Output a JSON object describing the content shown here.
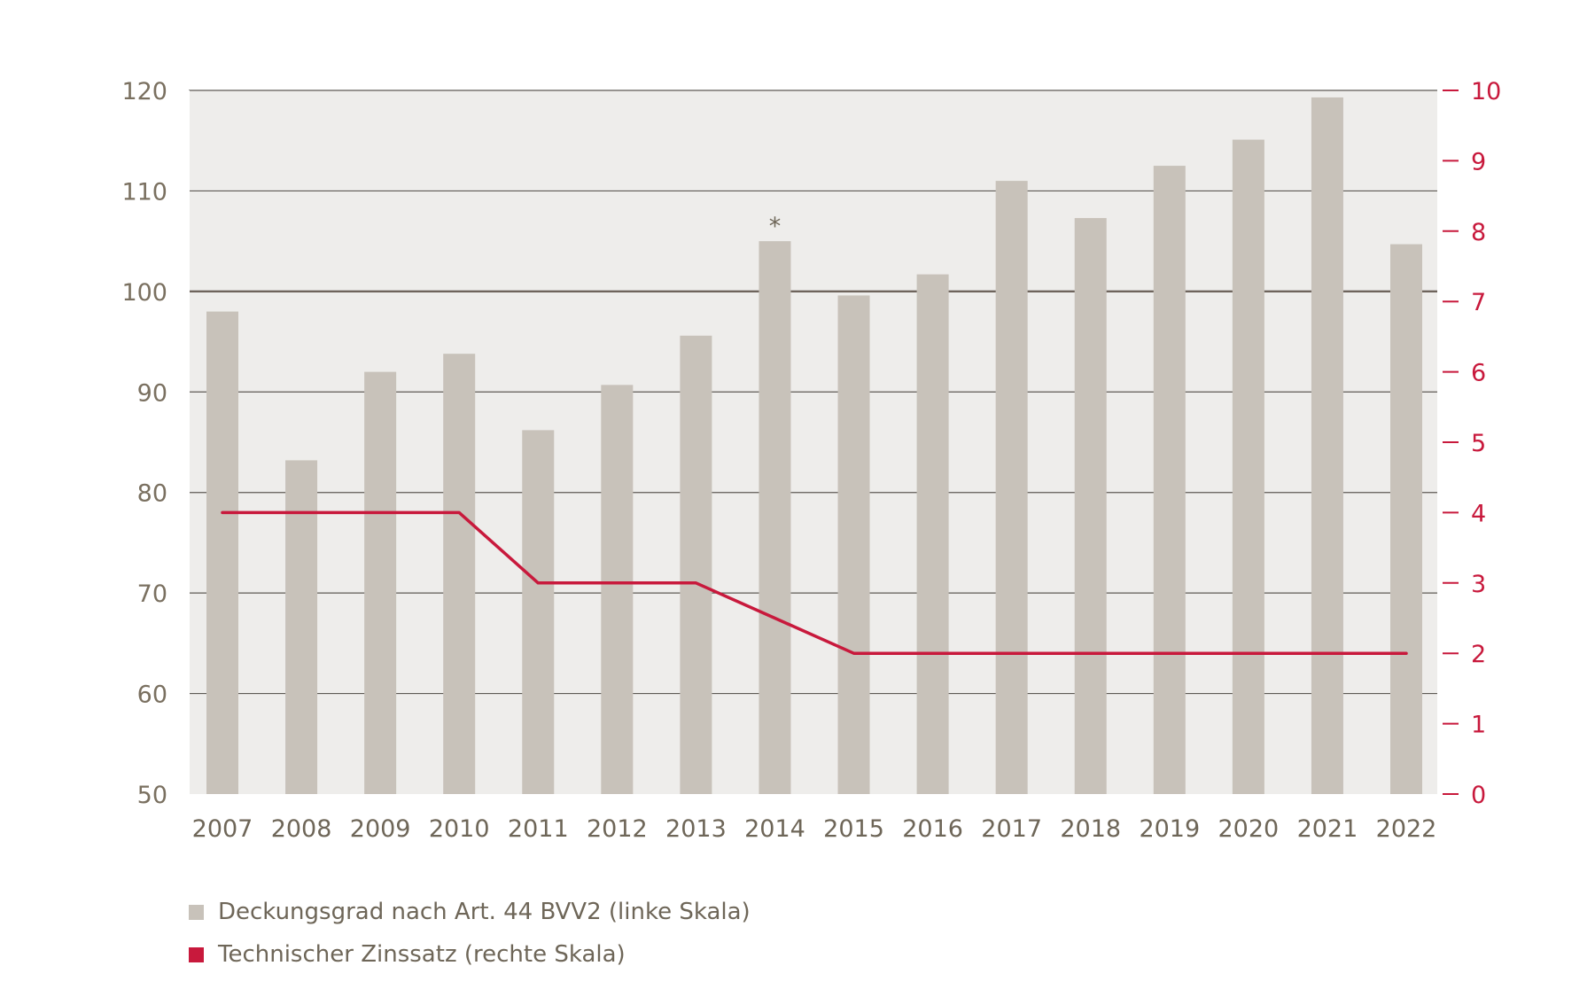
{
  "chart_data": {
    "type": "bar+line",
    "title": "",
    "categories": [
      "2007",
      "2008",
      "2009",
      "2010",
      "2011",
      "2012",
      "2013",
      "2014",
      "2015",
      "2016",
      "2017",
      "2018",
      "2019",
      "2020",
      "2021",
      "2022"
    ],
    "series": [
      {
        "name": "Deckungsgrad nach Art. 44 BVV2 (linke Skala)",
        "type": "bar",
        "axis": "left",
        "color": "#c8c2ba",
        "values": [
          98.0,
          83.2,
          92.0,
          93.8,
          86.2,
          90.7,
          95.6,
          105.0,
          99.6,
          101.7,
          111.0,
          107.3,
          112.5,
          115.1,
          119.3,
          104.7
        ]
      },
      {
        "name": "Technischer Zinssatz (rechte Skala)",
        "type": "line",
        "axis": "right",
        "color": "#c8193c",
        "values": [
          4,
          4,
          4,
          4,
          3,
          3,
          3,
          2.5,
          2,
          2,
          2,
          2,
          2,
          2,
          2,
          2
        ]
      }
    ],
    "left_axis": {
      "ylim": [
        50,
        120
      ],
      "ticks": [
        "50",
        "60",
        "70",
        "80",
        "90",
        "100",
        "110",
        "120"
      ],
      "color": "#7a7060"
    },
    "right_axis": {
      "ylim": [
        0,
        10
      ],
      "ticks": [
        "0",
        "1",
        "2",
        "3",
        "4",
        "5",
        "6",
        "7",
        "8",
        "9",
        "10"
      ],
      "color": "#c8193c"
    },
    "annotations": [
      {
        "category": "2014",
        "text": "*"
      }
    ],
    "reference_line": 100,
    "plot_background": "#eeedeb",
    "grid_color": "#5e5a55",
    "legend": [
      {
        "label": "Deckungsgrad nach Art. 44 BVV2 (linke Skala)",
        "color": "#c8c2ba"
      },
      {
        "label": "Technischer Zinssatz (rechte Skala)",
        "color": "#c8193c"
      }
    ]
  }
}
